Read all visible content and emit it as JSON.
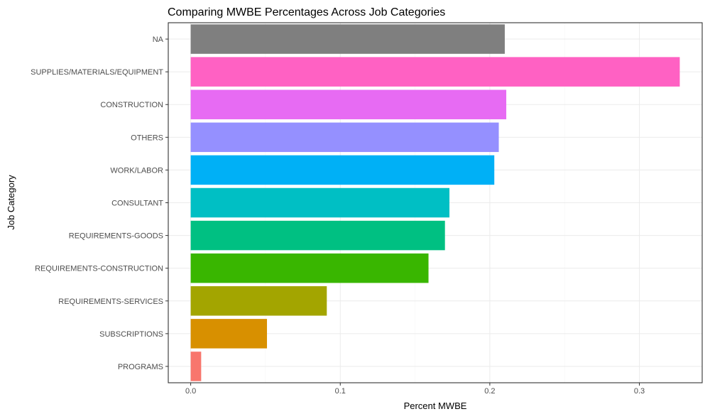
{
  "chart_data": {
    "type": "bar",
    "orientation": "horizontal",
    "title": "Comparing MWBE Percentages Across Job Categories",
    "xlabel": "Percent MWBE",
    "ylabel": "Job Category",
    "categories": [
      "NA",
      "SUPPLIES/MATERIALS/EQUIPMENT",
      "CONSTRUCTION",
      "OTHERS",
      "WORK/LABOR",
      "CONSULTANT",
      "REQUIREMENTS-GOODS",
      "REQUIREMENTS-CONSTRUCTION",
      "REQUIREMENTS-SERVICES",
      "SUBSCRIPTIONS",
      "PROGRAMS"
    ],
    "values": [
      0.21,
      0.327,
      0.211,
      0.206,
      0.203,
      0.173,
      0.17,
      0.159,
      0.091,
      0.051,
      0.007
    ],
    "colors": [
      "#7f7f7f",
      "#ff61c3",
      "#e76bf3",
      "#9590ff",
      "#00b0f6",
      "#00bfc4",
      "#00c082",
      "#39b600",
      "#a3a500",
      "#d89000",
      "#f8766d"
    ],
    "xlim": [
      -0.015,
      0.342
    ],
    "xticks": [
      0.0,
      0.1,
      0.2,
      0.3
    ],
    "xtick_labels": [
      "0.0",
      "0.1",
      "0.2",
      "0.3"
    ],
    "grid": true,
    "legend": "none"
  }
}
